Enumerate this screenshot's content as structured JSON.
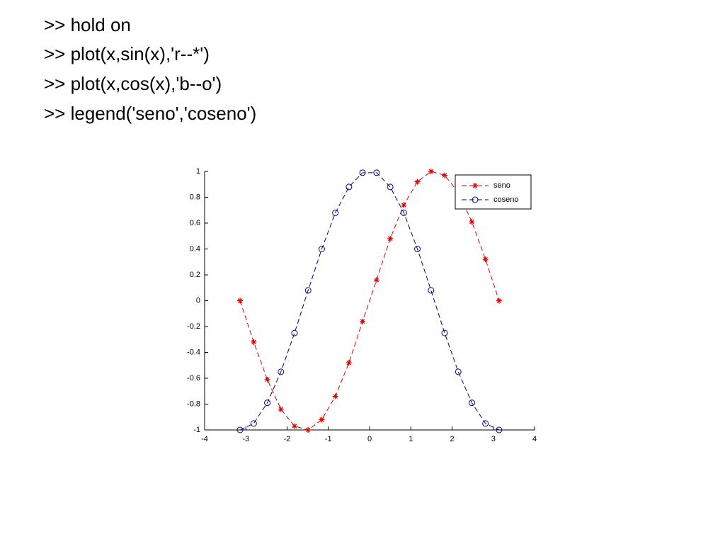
{
  "code_lines": [
    ">> hold on",
    ">> plot(x,sin(x),'r--*')",
    ">> plot(x,cos(x),'b--o')",
    ">> legend('seno','coseno')"
  ],
  "chart_data": {
    "type": "line",
    "x": [
      -3.14,
      -2.81,
      -2.48,
      -2.15,
      -1.82,
      -1.49,
      -1.16,
      -0.83,
      -0.5,
      -0.17,
      0.17,
      0.5,
      0.83,
      1.16,
      1.49,
      1.82,
      2.15,
      2.48,
      2.81,
      3.14
    ],
    "series": [
      {
        "name": "seno",
        "color": "#e00000",
        "marker": "*",
        "linestyle": "--",
        "values": [
          0,
          -0.32,
          -0.61,
          -0.84,
          -0.97,
          -1.0,
          -0.92,
          -0.74,
          -0.48,
          -0.16,
          0.16,
          0.48,
          0.74,
          0.92,
          1.0,
          0.97,
          0.84,
          0.61,
          0.32,
          0
        ]
      },
      {
        "name": "coseno",
        "color": "#00007f",
        "marker": "o",
        "linestyle": "--",
        "values": [
          -1.0,
          -0.95,
          -0.79,
          -0.55,
          -0.25,
          0.08,
          0.4,
          0.68,
          0.88,
          0.99,
          0.99,
          0.88,
          0.68,
          0.4,
          0.08,
          -0.25,
          -0.55,
          -0.79,
          -0.95,
          -1.0
        ]
      }
    ],
    "xlim": [
      -4,
      4
    ],
    "xticks": [
      -4,
      -3,
      -2,
      -1,
      0,
      1,
      2,
      3,
      4
    ],
    "ylim": [
      -1,
      1
    ],
    "yticks": [
      -1,
      -0.8,
      -0.6,
      -0.4,
      -0.2,
      0,
      0.2,
      0.4,
      0.6,
      0.8,
      1
    ],
    "legend": "upper right"
  }
}
